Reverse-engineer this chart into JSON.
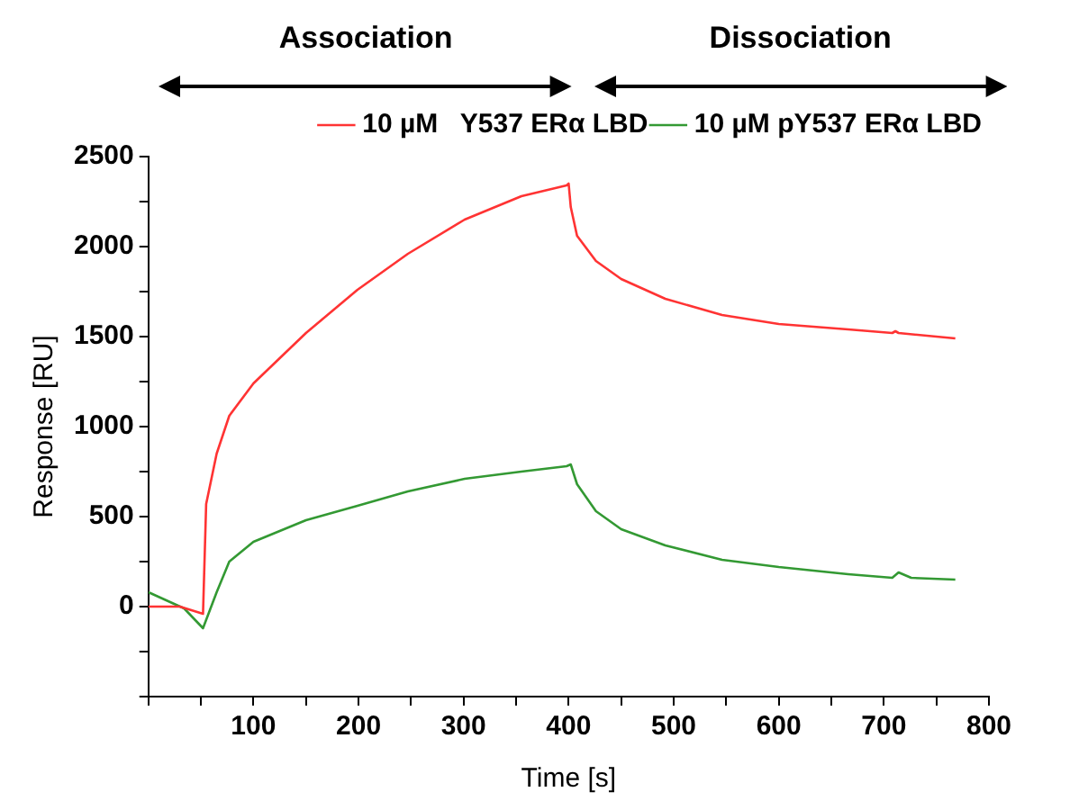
{
  "chart_data": {
    "type": "line",
    "xlabel": "Time [s]",
    "ylabel": "Response [RU]",
    "annotations": [
      "Association",
      "Dissociation"
    ],
    "xlim": [
      0,
      800
    ],
    "xticks": [
      {
        "value": 0,
        "label": null
      },
      {
        "value": 50,
        "label": null
      },
      100,
      {
        "value": 150,
        "label": null
      },
      200,
      {
        "value": 250,
        "label": null
      },
      300,
      {
        "value": 350,
        "label": null
      },
      400,
      {
        "value": 450,
        "label": null
      },
      500,
      {
        "value": 550,
        "label": null
      },
      600,
      {
        "value": 650,
        "label": null
      },
      700,
      {
        "value": 750,
        "label": null
      },
      800
    ],
    "ylim": [
      -500,
      2500
    ],
    "yticks": [
      {
        "value": -500,
        "label": null
      },
      {
        "value": -250,
        "label": null
      },
      0,
      {
        "value": 250,
        "label": null
      },
      500,
      {
        "value": 750,
        "label": null
      },
      1000,
      {
        "value": 1250,
        "label": null
      },
      1500,
      {
        "value": 1750,
        "label": null
      },
      2000,
      {
        "value": 2250,
        "label": null
      },
      2500
    ],
    "grid": false,
    "legend": "top right",
    "marker": "none",
    "line_style": "solid",
    "series": [
      {
        "name": "10 µM   Y537 ERα LBD",
        "color": "#ff3333",
        "x": [
          0,
          30,
          52,
          55,
          65,
          77,
          100,
          150,
          199,
          247,
          301,
          355,
          398,
          400,
          402,
          408,
          426,
          450,
          492,
          546,
          600,
          666,
          708,
          711,
          714,
          768
        ],
        "values": [
          0,
          0,
          -40,
          570,
          850,
          1060,
          1240,
          1520,
          1760,
          1960,
          2150,
          2280,
          2340,
          2350,
          2220,
          2060,
          1920,
          1820,
          1710,
          1620,
          1570,
          1540,
          1520,
          1530,
          1520,
          1490
        ]
      },
      {
        "name": "10 µM pY537 ERα LBD",
        "color": "#339933",
        "x": [
          0,
          34,
          52,
          65,
          77,
          100,
          150,
          199,
          247,
          301,
          355,
          398,
          402,
          408,
          426,
          450,
          492,
          546,
          600,
          666,
          708,
          714,
          726,
          768
        ],
        "values": [
          80,
          -10,
          -120,
          80,
          250,
          360,
          480,
          560,
          640,
          710,
          750,
          780,
          790,
          680,
          530,
          430,
          340,
          260,
          220,
          180,
          160,
          190,
          160,
          150
        ]
      }
    ]
  }
}
